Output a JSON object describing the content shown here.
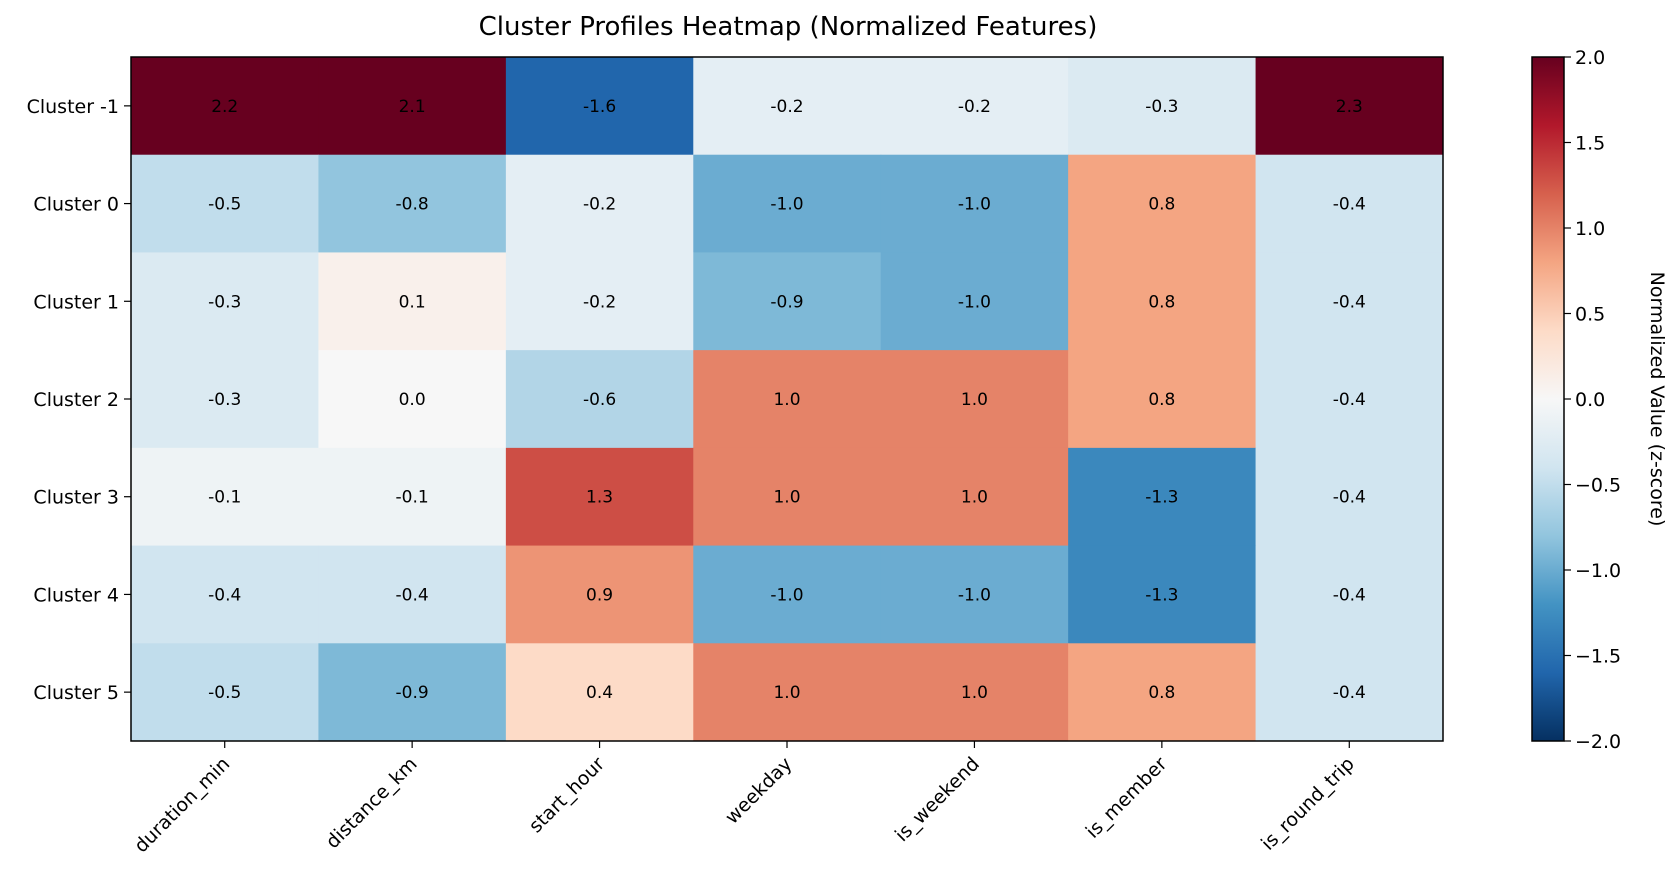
{
  "chart_data": {
    "type": "heatmap",
    "title": "Cluster Profiles Heatmap (Normalized Features)",
    "rows": [
      "Cluster -1",
      "Cluster 0",
      "Cluster 1",
      "Cluster 2",
      "Cluster 3",
      "Cluster 4",
      "Cluster 5"
    ],
    "columns": [
      "duration_min",
      "distance_km",
      "start_hour",
      "weekday",
      "is_weekend",
      "is_member",
      "is_round_trip"
    ],
    "values": [
      [
        2.2,
        2.1,
        -1.6,
        -0.2,
        -0.2,
        -0.3,
        2.3
      ],
      [
        -0.5,
        -0.8,
        -0.2,
        -1.0,
        -1.0,
        0.8,
        -0.4
      ],
      [
        -0.3,
        0.1,
        -0.2,
        -0.9,
        -1.0,
        0.8,
        -0.4
      ],
      [
        -0.3,
        0.0,
        -0.6,
        1.0,
        1.0,
        0.8,
        -0.4
      ],
      [
        -0.1,
        -0.1,
        1.3,
        1.0,
        1.0,
        -1.3,
        -0.4
      ],
      [
        -0.4,
        -0.4,
        0.9,
        -1.0,
        -1.0,
        -1.3,
        -0.4
      ],
      [
        -0.5,
        -0.9,
        0.4,
        1.0,
        1.0,
        0.8,
        -0.4
      ]
    ],
    "value_labels": [
      [
        "2.2",
        "2.1",
        "-1.6",
        "-0.2",
        "-0.2",
        "-0.3",
        "2.3"
      ],
      [
        "-0.5",
        "-0.8",
        "-0.2",
        "-1.0",
        "-1.0",
        "0.8",
        "-0.4"
      ],
      [
        "-0.3",
        "0.1",
        "-0.2",
        "-0.9",
        "-1.0",
        "0.8",
        "-0.4"
      ],
      [
        "-0.3",
        "0.0",
        "-0.6",
        "1.0",
        "1.0",
        "0.8",
        "-0.4"
      ],
      [
        "-0.1",
        "-0.1",
        "1.3",
        "1.0",
        "1.0",
        "-1.3",
        "-0.4"
      ],
      [
        "-0.4",
        "-0.4",
        "0.9",
        "-1.0",
        "-1.0",
        "-1.3",
        "-0.4"
      ],
      [
        "-0.5",
        "-0.9",
        "0.4",
        "1.0",
        "1.0",
        "0.8",
        "-0.4"
      ]
    ],
    "colormap": "RdBu_r",
    "colormap_stops": [
      "#053061",
      "#2166ac",
      "#4393c3",
      "#92c5de",
      "#d1e5f0",
      "#f7f7f7",
      "#fddbc7",
      "#f4a582",
      "#d6604d",
      "#b2182b",
      "#67001f"
    ],
    "value_range": [
      -2.0,
      2.0
    ],
    "colorbar": {
      "label": "Normalized Value (z-score)",
      "ticks": [
        2.0,
        1.5,
        1.0,
        0.5,
        0.0,
        -0.5,
        -1.0,
        -1.5,
        -2.0
      ],
      "tick_labels": [
        "2.0",
        "1.5",
        "1.0",
        "0.5",
        "0.0",
        "−0.5",
        "−1.0",
        "−1.5",
        "−2.0"
      ]
    },
    "grid": false
  }
}
